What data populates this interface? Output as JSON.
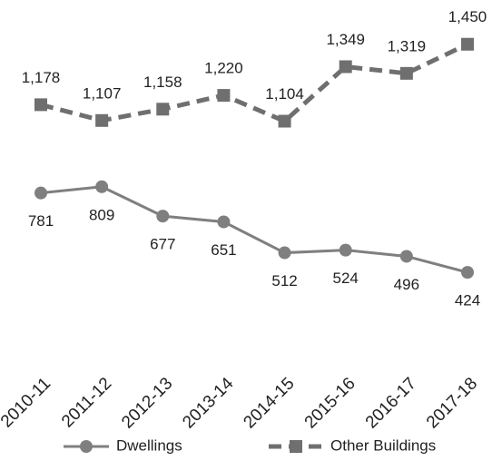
{
  "chart_data": {
    "type": "line",
    "categories": [
      "2010-11",
      "2011-12",
      "2012-13",
      "2013-14",
      "2014-15",
      "2015-16",
      "2016-17",
      "2017-18"
    ],
    "series": [
      {
        "name": "Dwellings",
        "color": "#7f7f7f",
        "marker": "circle",
        "dash": false,
        "label_position": "below",
        "values": [
          781,
          809,
          677,
          651,
          512,
          524,
          496,
          424
        ]
      },
      {
        "name": "Other Buildings",
        "color": "#6f6f6f",
        "marker": "square",
        "dash": true,
        "label_position": "above",
        "values": [
          1178,
          1107,
          1158,
          1220,
          1104,
          1349,
          1319,
          1450
        ],
        "value_labels": [
          "1,178",
          "1,107",
          "1,158",
          "1,220",
          "1,104",
          "1,349",
          "1,319",
          "1,450"
        ]
      }
    ],
    "ylim": [
      0,
      1600
    ],
    "legend": "bottom"
  }
}
